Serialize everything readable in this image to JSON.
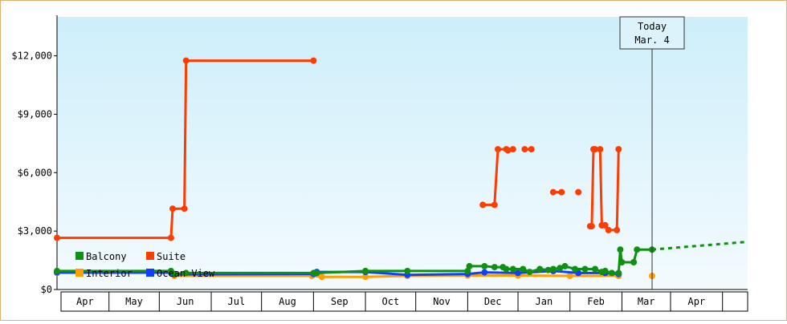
{
  "chart_data": {
    "type": "line",
    "title": "",
    "xlabel": "",
    "ylabel": "",
    "ylim": [
      0,
      14000
    ],
    "y_ticks": [
      {
        "value": 0,
        "label": "$0"
      },
      {
        "value": 3000,
        "label": "$3,000"
      },
      {
        "value": 6000,
        "label": "$6,000"
      },
      {
        "value": 9000,
        "label": "$9,000"
      },
      {
        "value": 12000,
        "label": "$12,000"
      }
    ],
    "x_range": [
      "2023-03-15",
      "2024-04-30"
    ],
    "x_ticks": [
      {
        "label": "Apr",
        "from": "2023-03-15",
        "to": "2023-04-15"
      },
      {
        "label": "May",
        "from": "2023-04-15",
        "to": "2023-05-15"
      },
      {
        "label": "Jun",
        "from": "2023-05-15",
        "to": "2023-06-15"
      },
      {
        "label": "Jul",
        "from": "2023-06-15",
        "to": "2023-07-15"
      },
      {
        "label": "Aug",
        "from": "2023-07-15",
        "to": "2023-08-15"
      },
      {
        "label": "Sep",
        "from": "2023-08-15",
        "to": "2023-09-15"
      },
      {
        "label": "Oct",
        "from": "2023-09-15",
        "to": "2023-10-15"
      },
      {
        "label": "Nov",
        "from": "2023-10-15",
        "to": "2023-11-15"
      },
      {
        "label": "Dec",
        "from": "2023-11-15",
        "to": "2023-12-15"
      },
      {
        "label": "Jan",
        "from": "2023-12-15",
        "to": "2024-01-15"
      },
      {
        "label": "Feb",
        "from": "2024-01-15",
        "to": "2024-02-15"
      },
      {
        "label": "Mar",
        "from": "2024-02-15",
        "to": "2024-03-15"
      },
      {
        "label": "Apr",
        "from": "2024-03-15",
        "to": "2024-04-15"
      }
    ],
    "today": {
      "date": "2024-03-04",
      "line1": "Today",
      "line2": "Mar. 4"
    },
    "grid": false,
    "legend_position": "bottom-left",
    "colors": {
      "Balcony": "#109010",
      "Suite": "#ff3c00",
      "Interior": "#ffa000",
      "Ocean View": "#1040ff",
      "background_top": "#cdeefa",
      "background_bottom": "#f4fbfe"
    },
    "series": [
      {
        "name": "Suite",
        "color": "#ff3c00",
        "segments": [
          [
            [
              "2023-03-15",
              2650
            ],
            [
              "2023-05-22",
              2650
            ],
            [
              "2023-05-23",
              4150
            ],
            [
              "2023-05-30",
              4150
            ],
            [
              "2023-05-31",
              11750
            ],
            [
              "2023-08-15",
              11750
            ]
          ],
          [
            [
              "2023-11-24",
              4350
            ],
            [
              "2023-12-01",
              4350
            ],
            [
              "2023-12-03",
              7200
            ],
            [
              "2023-12-08",
              7200
            ],
            [
              "2023-12-09",
              7150
            ],
            [
              "2023-12-12",
              7200
            ]
          ],
          [
            [
              "2023-12-19",
              7200
            ],
            [
              "2023-12-23",
              7200
            ]
          ],
          [
            [
              "2024-01-05",
              5000
            ],
            [
              "2024-01-10",
              5000
            ]
          ],
          [
            [
              "2024-01-20",
              5000
            ]
          ],
          [
            [
              "2024-01-27",
              3250
            ],
            [
              "2024-01-28",
              3250
            ],
            [
              "2024-01-29",
              7200
            ],
            [
              "2024-01-30",
              7200
            ]
          ],
          [
            [
              "2024-02-02",
              7200
            ],
            [
              "2024-02-03",
              3300
            ],
            [
              "2024-02-05",
              3300
            ],
            [
              "2024-02-07",
              3050
            ],
            [
              "2024-02-12",
              3050
            ],
            [
              "2024-02-13",
              7200
            ]
          ]
        ]
      },
      {
        "name": "Interior",
        "color": "#ffa000",
        "segments": [
          [
            [
              "2023-03-15",
              850
            ],
            [
              "2023-05-22",
              850
            ],
            [
              "2023-05-24",
              700
            ],
            [
              "2023-08-14",
              700
            ],
            [
              "2023-08-20",
              650
            ],
            [
              "2023-09-15",
              650
            ],
            [
              "2023-10-10",
              700
            ],
            [
              "2023-11-15",
              720
            ],
            [
              "2023-12-15",
              720
            ],
            [
              "2024-01-15",
              700
            ],
            [
              "2024-02-13",
              700
            ]
          ],
          [
            [
              "2024-03-04",
              700
            ]
          ]
        ]
      },
      {
        "name": "Ocean View",
        "color": "#1040ff",
        "segments": [
          [
            [
              "2023-03-15",
              880
            ],
            [
              "2023-05-22",
              880
            ],
            [
              "2023-05-24",
              780
            ],
            [
              "2023-08-15",
              800
            ],
            [
              "2023-08-17",
              900
            ],
            [
              "2023-09-15",
              900
            ],
            [
              "2023-10-10",
              750
            ],
            [
              "2023-11-15",
              800
            ],
            [
              "2023-11-25",
              880
            ],
            [
              "2023-12-15",
              850
            ],
            [
              "2024-01-05",
              950
            ],
            [
              "2024-01-20",
              850
            ],
            [
              "2024-02-05",
              850
            ],
            [
              "2024-02-13",
              800
            ]
          ]
        ]
      },
      {
        "name": "Balcony",
        "color": "#109010",
        "segments": [
          [
            [
              "2023-03-15",
              950
            ],
            [
              "2023-05-22",
              950
            ],
            [
              "2023-05-24",
              800
            ],
            [
              "2023-05-31",
              850
            ],
            [
              "2023-08-15",
              850
            ],
            [
              "2023-08-17",
              850
            ],
            [
              "2023-09-15",
              950
            ],
            [
              "2023-10-10",
              950
            ],
            [
              "2023-11-15",
              950
            ],
            [
              "2023-11-16",
              1200
            ],
            [
              "2023-11-25",
              1200
            ],
            [
              "2023-12-01",
              1150
            ],
            [
              "2023-12-06",
              1150
            ],
            [
              "2023-12-08",
              1050
            ],
            [
              "2023-12-12",
              1050
            ],
            [
              "2023-12-18",
              1050
            ],
            [
              "2023-12-22",
              900
            ],
            [
              "2023-12-28",
              1050
            ],
            [
              "2024-01-02",
              1000
            ],
            [
              "2024-01-05",
              1050
            ],
            [
              "2024-01-09",
              1100
            ],
            [
              "2024-01-12",
              1200
            ],
            [
              "2024-01-18",
              1050
            ],
            [
              "2024-01-24",
              1050
            ],
            [
              "2024-01-30",
              1050
            ],
            [
              "2024-02-03",
              900
            ],
            [
              "2024-02-05",
              950
            ],
            [
              "2024-02-09",
              850
            ],
            [
              "2024-02-13",
              850
            ],
            [
              "2024-02-14",
              2050
            ],
            [
              "2024-02-15",
              1400
            ],
            [
              "2024-02-22",
              1400
            ],
            [
              "2024-02-24",
              2050
            ],
            [
              "2024-03-04",
              2050
            ]
          ]
        ]
      }
    ],
    "forecast": {
      "series": "Balcony",
      "color": "#109010",
      "points": [
        [
          "2024-03-04",
          2050
        ],
        [
          "2024-04-30",
          2450
        ]
      ]
    },
    "legend": [
      {
        "name": "Balcony",
        "color": "#109010"
      },
      {
        "name": "Suite",
        "color": "#ff3c00"
      },
      {
        "name": "Interior",
        "color": "#ffa000"
      },
      {
        "name": "Ocean View",
        "color": "#1040ff"
      }
    ]
  }
}
